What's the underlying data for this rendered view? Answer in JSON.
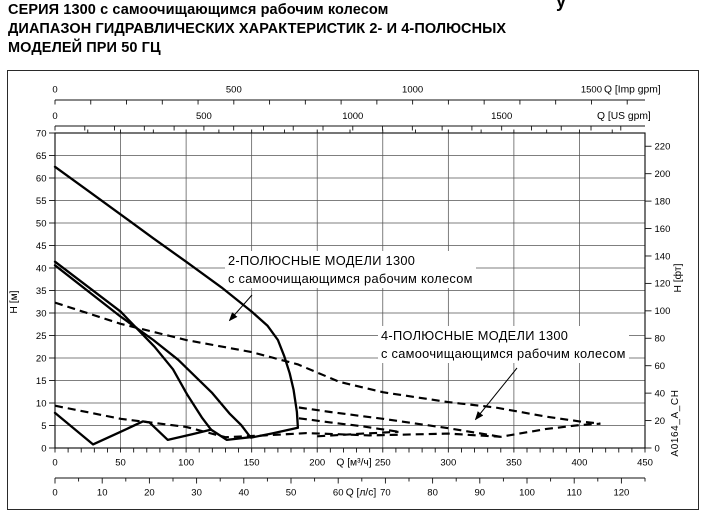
{
  "page": {
    "title_lines": [
      "СЕРИЯ 1300 с самоочищающимся рабочим колесом",
      "ДИАПАЗОН ГИДРАВЛИЧЕСКИХ ХАРАКТЕРИСТИК 2- И 4-ПОЛЮСНЫХ",
      "МОДЕЛЕЙ ПРИ 50 ГЦ"
    ],
    "corner_fragment": "у",
    "figure_code": "A0164_A_CH"
  },
  "chart_data": {
    "type": "line",
    "title": "Диапазон гидравлических характеристик, серия 1300, 50 Гц",
    "grid": true,
    "axes": {
      "x_m3h": {
        "unit_label": "Q [м³/ч]",
        "min": 0,
        "max": 450,
        "minor_step": 10,
        "top_minor_step": 25,
        "tick_labels": [
          0,
          50,
          100,
          150,
          200,
          250,
          300,
          350,
          400,
          450
        ]
      },
      "x_ls": {
        "unit_label": "Q [л/с]",
        "min": 0,
        "max": 125,
        "minor_step": 5,
        "tick_labels": [
          0,
          10,
          20,
          30,
          40,
          50,
          60,
          70,
          80,
          90,
          100,
          110,
          120
        ]
      },
      "x_usgpm": {
        "unit_label": "Q [US gpm]",
        "min": 0,
        "max": 1980,
        "tick_step": 100,
        "tick_labels": [
          0,
          500,
          1000,
          1500
        ]
      },
      "x_impgpm": {
        "unit_label": "Q [Imp gpm]",
        "min": 0,
        "max": 1650,
        "tick_step": 100,
        "tick_labels": [
          0,
          500,
          1000,
          1500
        ]
      },
      "y_m": {
        "unit_label": "H [м]",
        "min": 0,
        "max": 70,
        "tick_labels": [
          0,
          5,
          10,
          15,
          20,
          25,
          30,
          35,
          40,
          45,
          50,
          55,
          60,
          65,
          70
        ]
      },
      "y_ft": {
        "unit_label": "H [фт]",
        "min": 0,
        "max": 229,
        "tick_labels": [
          0,
          20,
          40,
          60,
          80,
          100,
          120,
          140,
          160,
          180,
          200,
          220
        ]
      }
    },
    "series": [
      {
        "name": "2pole-envelope-large",
        "style": "solid",
        "points": [
          [
            0,
            62.5
          ],
          [
            25,
            57.2
          ],
          [
            50,
            51.9
          ],
          [
            75,
            46.6
          ],
          [
            100,
            41.4
          ],
          [
            127,
            35.7
          ],
          [
            150,
            30.3
          ],
          [
            162,
            27.2
          ],
          [
            170,
            24.0
          ],
          [
            175,
            20.3
          ],
          [
            179,
            16.6
          ],
          [
            182,
            12.9
          ],
          [
            184.5,
            8.0
          ],
          [
            185.3,
            4.5
          ],
          [
            165,
            3.2
          ],
          [
            149.5,
            2.3
          ]
        ]
      },
      {
        "name": "2pole-envelope-mid-upper",
        "style": "solid",
        "points": [
          [
            0,
            41.4
          ],
          [
            50,
            30.3
          ],
          [
            76,
            22.5
          ],
          [
            90,
            17.5
          ],
          [
            101,
            11.8
          ],
          [
            112,
            6.8
          ],
          [
            119,
            4.1
          ]
        ]
      },
      {
        "name": "2pole-envelope-mid-lower",
        "style": "solid",
        "points": [
          [
            0,
            40.6
          ],
          [
            50,
            29.2
          ],
          [
            75,
            24.0
          ],
          [
            94,
            19.6
          ],
          [
            120,
            12.2
          ],
          [
            133,
            7.7
          ],
          [
            142,
            5.1
          ],
          [
            149,
            2.4
          ]
        ]
      },
      {
        "name": "2pole-bottom-zigzag-left",
        "style": "solid",
        "points": [
          [
            0,
            7.8
          ],
          [
            29,
            0.8
          ],
          [
            50,
            3.6
          ],
          [
            67,
            5.9
          ],
          [
            72,
            5.7
          ],
          [
            86,
            1.8
          ],
          [
            105,
            3.1
          ],
          [
            119,
            4.1
          ]
        ]
      },
      {
        "name": "2pole-bottom-zigzag-mid",
        "style": "solid",
        "points": [
          [
            119,
            4.1
          ],
          [
            131,
            1.8
          ],
          [
            149,
            2.4
          ]
        ]
      },
      {
        "name": "4pole-top-boundary",
        "style": "dashed",
        "points": [
          [
            0,
            32.3
          ],
          [
            50,
            27.6
          ],
          [
            100,
            24.0
          ],
          [
            150,
            21.3
          ],
          [
            185,
            18.6
          ],
          [
            217,
            14.7
          ],
          [
            250,
            12.4
          ],
          [
            300,
            10.2
          ],
          [
            336,
            9.0
          ],
          [
            374,
            7.0
          ],
          [
            400,
            5.9
          ],
          [
            416,
            5.4
          ]
        ]
      },
      {
        "name": "4pole-bottom-boundary",
        "style": "dashed",
        "points": [
          [
            0,
            9.4
          ],
          [
            50,
            6.5
          ],
          [
            100,
            4.7
          ],
          [
            130,
            2.4
          ],
          [
            160,
            2.8
          ],
          [
            192,
            3.3
          ],
          [
            240,
            2.8
          ],
          [
            300,
            3.2
          ],
          [
            340,
            2.5
          ],
          [
            374,
            4.2
          ],
          [
            400,
            5.1
          ],
          [
            416,
            5.4
          ]
        ]
      },
      {
        "name": "4pole-inner-upper",
        "style": "dashed",
        "points": [
          [
            186,
            9.0
          ],
          [
            210,
            8.0
          ],
          [
            250,
            6.5
          ],
          [
            300,
            4.4
          ],
          [
            340,
            2.5
          ]
        ]
      },
      {
        "name": "4pole-inner-mid",
        "style": "dashed",
        "points": [
          [
            186,
            6.6
          ],
          [
            210,
            5.7
          ],
          [
            235,
            4.8
          ],
          [
            262,
            3.6
          ]
        ]
      },
      {
        "name": "4pole-inner-low",
        "style": "dashed",
        "points": [
          [
            200,
            2.6
          ],
          [
            235,
            3.2
          ],
          [
            262,
            3.6
          ]
        ]
      }
    ],
    "annotations": [
      {
        "name": "2pole",
        "lines": [
          "2-ПОЛЮСНЫЕ МОДЕЛИ 1300",
          "с самоочищающимся рабочим колесом"
        ]
      },
      {
        "name": "4pole",
        "lines": [
          "4-ПОЛЮСНЫЕ МОДЕЛИ 1300",
          "с самоочищающимся рабочим колесом"
        ]
      }
    ]
  }
}
